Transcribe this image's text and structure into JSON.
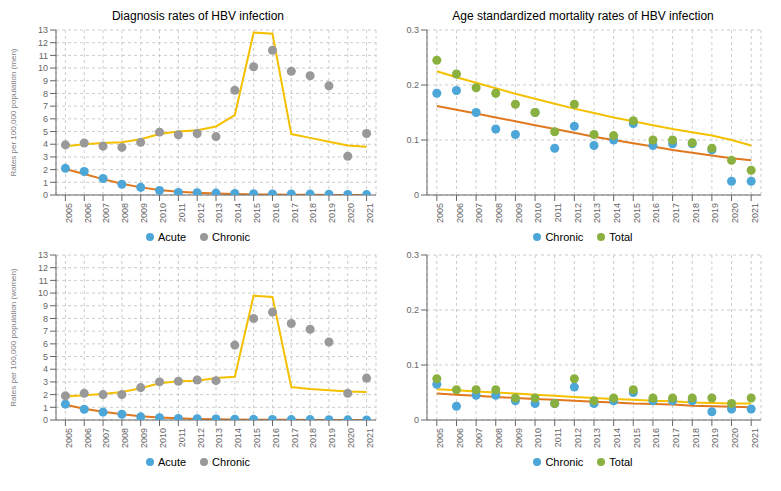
{
  "chart_data": [
    {
      "type": "line",
      "title": "Diagnosis rates of HBV infection",
      "ylabel": "Rates per 100,000 population (men)",
      "x": [
        2005,
        2006,
        2007,
        2008,
        2009,
        2010,
        2011,
        2012,
        2013,
        2014,
        2015,
        2016,
        2017,
        2018,
        2019,
        2020,
        2021
      ],
      "xlim": [
        2004.5,
        2021.5
      ],
      "xticks": [
        2005,
        2006,
        2007,
        2008,
        2009,
        2010,
        2011,
        2012,
        2013,
        2014,
        2015,
        2016,
        2017,
        2018,
        2019,
        2020,
        2021
      ],
      "ylim": [
        0,
        13
      ],
      "yticks": [
        0,
        1,
        2,
        3,
        4,
        5,
        6,
        7,
        8,
        9,
        10,
        11,
        12,
        13
      ],
      "grid": true,
      "legend": "bottom",
      "series": [
        {
          "type": "line",
          "color": "#f5c000",
          "values": [
            3.85,
            4.0,
            4.1,
            4.15,
            4.4,
            4.8,
            5.0,
            5.1,
            5.4,
            6.3,
            12.8,
            12.7,
            4.8,
            4.5,
            4.2,
            3.9,
            3.8
          ]
        },
        {
          "type": "line",
          "color": "#e07820",
          "values": [
            2.05,
            1.65,
            1.25,
            0.88,
            0.6,
            0.4,
            0.26,
            0.17,
            0.11,
            0.07,
            0.045,
            0.03,
            0.02,
            0.013,
            0.008,
            0.005,
            0.003
          ]
        },
        {
          "name": "Acute",
          "type": "scatter",
          "color": "#4da6d8",
          "values": [
            2.1,
            1.85,
            1.3,
            0.85,
            0.6,
            0.35,
            0.2,
            0.18,
            0.15,
            0.12,
            0.1,
            0.08,
            0.08,
            0.07,
            0.06,
            0.04,
            0.03
          ]
        },
        {
          "name": "Chronic",
          "type": "scatter",
          "color": "#999999",
          "values": [
            3.95,
            4.1,
            3.85,
            3.75,
            4.15,
            4.95,
            4.75,
            4.85,
            4.6,
            8.25,
            10.1,
            11.4,
            9.75,
            9.4,
            8.6,
            3.05,
            4.85
          ]
        }
      ]
    },
    {
      "type": "line",
      "title": "Age standardized mortality rates of HBV infection",
      "x": [
        2005,
        2006,
        2007,
        2008,
        2009,
        2010,
        2011,
        2012,
        2013,
        2014,
        2015,
        2016,
        2017,
        2018,
        2019,
        2020,
        2021
      ],
      "xlim": [
        2004.5,
        2021.5
      ],
      "xticks": [
        2005,
        2006,
        2007,
        2008,
        2009,
        2010,
        2011,
        2012,
        2013,
        2014,
        2015,
        2016,
        2017,
        2018,
        2019,
        2020,
        2021
      ],
      "ylim": [
        0,
        0.3
      ],
      "yticks": [
        0,
        0.1,
        0.2,
        0.3
      ],
      "grid": true,
      "legend": "bottom",
      "series": [
        {
          "type": "line",
          "color": "#f5c000",
          "values": [
            0.225,
            0.214,
            0.204,
            0.194,
            0.184,
            0.175,
            0.166,
            0.157,
            0.149,
            0.141,
            0.134,
            0.127,
            0.12,
            0.114,
            0.108,
            0.1,
            0.09
          ]
        },
        {
          "type": "line",
          "color": "#e07820",
          "values": [
            0.162,
            0.155,
            0.148,
            0.141,
            0.134,
            0.127,
            0.12,
            0.113,
            0.106,
            0.1,
            0.094,
            0.088,
            0.082,
            0.077,
            0.072,
            0.067,
            0.063
          ]
        },
        {
          "name": "Chronic",
          "type": "scatter",
          "color": "#4da6d8",
          "values": [
            0.185,
            0.19,
            0.15,
            0.12,
            0.11,
            0.15,
            0.085,
            0.125,
            0.09,
            0.1,
            0.13,
            0.09,
            0.093,
            0.093,
            0.082,
            0.025,
            0.025
          ]
        },
        {
          "name": "Total",
          "type": "scatter",
          "color": "#8ab040",
          "values": [
            0.245,
            0.22,
            0.195,
            0.185,
            0.165,
            0.15,
            0.115,
            0.165,
            0.11,
            0.108,
            0.135,
            0.1,
            0.1,
            0.095,
            0.085,
            0.063,
            0.045
          ]
        }
      ]
    },
    {
      "type": "line",
      "ylabel": "Rates per 100,000 population (women)",
      "x": [
        2005,
        2006,
        2007,
        2008,
        2009,
        2010,
        2011,
        2012,
        2013,
        2014,
        2015,
        2016,
        2017,
        2018,
        2019,
        2020,
        2021
      ],
      "xlim": [
        2004.5,
        2021.5
      ],
      "xticks": [
        2005,
        2006,
        2007,
        2008,
        2009,
        2010,
        2011,
        2012,
        2013,
        2014,
        2015,
        2016,
        2017,
        2018,
        2019,
        2020,
        2021
      ],
      "ylim": [
        0,
        13
      ],
      "yticks": [
        0,
        1,
        2,
        3,
        4,
        5,
        6,
        7,
        8,
        9,
        10,
        11,
        12,
        13
      ],
      "grid": true,
      "legend": "bottom",
      "series": [
        {
          "type": "line",
          "color": "#f5c000",
          "values": [
            1.85,
            1.95,
            2.05,
            2.2,
            2.5,
            2.9,
            3.05,
            3.1,
            3.3,
            3.4,
            9.8,
            9.7,
            2.6,
            2.45,
            2.35,
            2.25,
            2.2
          ]
        },
        {
          "type": "line",
          "color": "#e07820",
          "values": [
            1.2,
            0.88,
            0.65,
            0.45,
            0.3,
            0.2,
            0.13,
            0.085,
            0.055,
            0.036,
            0.023,
            0.015,
            0.01,
            0.007,
            0.004,
            0.003,
            0.002
          ]
        },
        {
          "name": "Acute",
          "type": "scatter",
          "color": "#4da6d8",
          "values": [
            1.25,
            0.85,
            0.62,
            0.45,
            0.25,
            0.18,
            0.12,
            0.1,
            0.08,
            0.06,
            0.05,
            0.04,
            0.03,
            0.03,
            0.02,
            0.01,
            0.008
          ]
        },
        {
          "name": "Chronic",
          "type": "scatter",
          "color": "#999999",
          "values": [
            1.9,
            2.1,
            2.0,
            2.0,
            2.55,
            3.0,
            3.05,
            3.15,
            3.1,
            5.9,
            8.0,
            8.5,
            7.6,
            7.15,
            6.15,
            2.1,
            3.3
          ]
        }
      ]
    },
    {
      "type": "line",
      "x": [
        2005,
        2006,
        2007,
        2008,
        2009,
        2010,
        2011,
        2012,
        2013,
        2014,
        2015,
        2016,
        2017,
        2018,
        2019,
        2020,
        2021
      ],
      "xlim": [
        2004.5,
        2021.5
      ],
      "xticks": [
        2005,
        2006,
        2007,
        2008,
        2009,
        2010,
        2011,
        2012,
        2013,
        2014,
        2015,
        2016,
        2017,
        2018,
        2019,
        2020,
        2021
      ],
      "ylim": [
        0,
        0.3
      ],
      "yticks": [
        0,
        0.1,
        0.2,
        0.3
      ],
      "grid": true,
      "legend": "bottom",
      "series": [
        {
          "type": "line",
          "color": "#f5c000",
          "values": [
            0.056,
            0.054,
            0.052,
            0.05,
            0.048,
            0.046,
            0.044,
            0.042,
            0.04,
            0.038,
            0.037,
            0.035,
            0.034,
            0.032,
            0.031,
            0.03,
            0.03
          ]
        },
        {
          "type": "line",
          "color": "#e07820",
          "values": [
            0.048,
            0.046,
            0.044,
            0.042,
            0.04,
            0.038,
            0.037,
            0.035,
            0.033,
            0.032,
            0.03,
            0.029,
            0.028,
            0.026,
            0.025,
            0.024,
            0.023
          ]
        },
        {
          "name": "Chronic",
          "type": "scatter",
          "color": "#4da6d8",
          "values": [
            0.065,
            0.025,
            0.045,
            0.045,
            0.035,
            0.03,
            0.03,
            0.06,
            0.03,
            0.035,
            0.05,
            0.035,
            0.035,
            0.035,
            0.015,
            0.02,
            0.02
          ]
        },
        {
          "name": "Total",
          "type": "scatter",
          "color": "#8ab040",
          "values": [
            0.075,
            0.055,
            0.055,
            0.055,
            0.04,
            0.04,
            0.03,
            0.075,
            0.035,
            0.04,
            0.055,
            0.04,
            0.04,
            0.04,
            0.04,
            0.03,
            0.04
          ]
        }
      ]
    }
  ]
}
